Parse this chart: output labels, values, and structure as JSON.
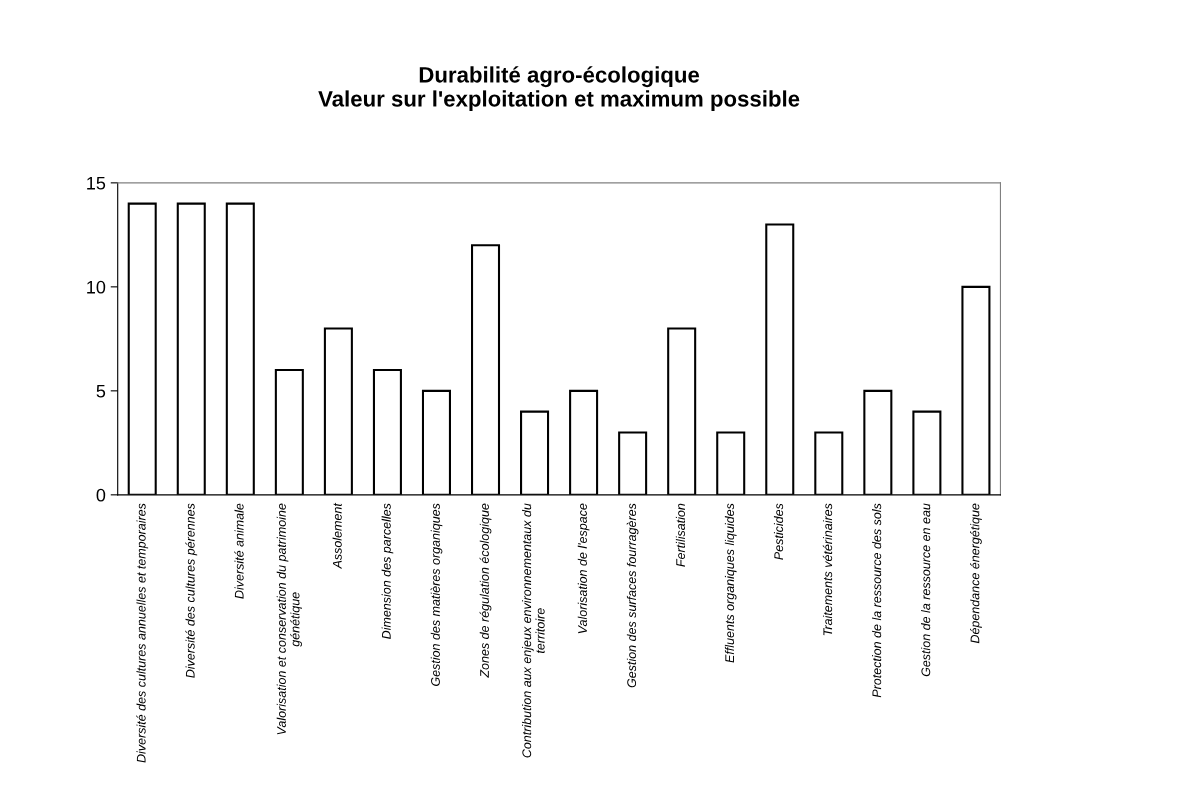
{
  "chart_data": {
    "type": "bar",
    "title": "Durabilité agro-écologique\nValeur sur l'exploitation et maximum possible",
    "categories": [
      "Diversité des cultures annuelles et temporaires",
      "Diversité des cultures pérennes",
      "Diversité animale",
      "Valorisation et conservation du patrimoine\ngénétique",
      "Assolement",
      "Dimension des parcelles",
      "Gestion des matières organiques",
      "Zones de régulation écologique",
      "Contribution aux enjeux environnementaux du\nterritoire",
      "Valorisation de l'espace",
      "Gestion des surfaces fourragères",
      "Fertilisation",
      "Effluents organiques liquides",
      "Pesticides",
      "Traitements vétérinaires",
      "Protection de la ressource des sols",
      "Gestion de la ressource en eau",
      "Dépendance énergétique"
    ],
    "values": [
      14,
      14,
      14,
      6,
      8,
      6,
      5,
      12,
      4,
      5,
      3,
      8,
      3,
      13,
      3,
      5,
      4,
      10
    ],
    "color": "#ffffff",
    "ylim": [
      0,
      15
    ],
    "yticks": [
      0,
      5,
      10,
      15
    ],
    "grid": false
  }
}
